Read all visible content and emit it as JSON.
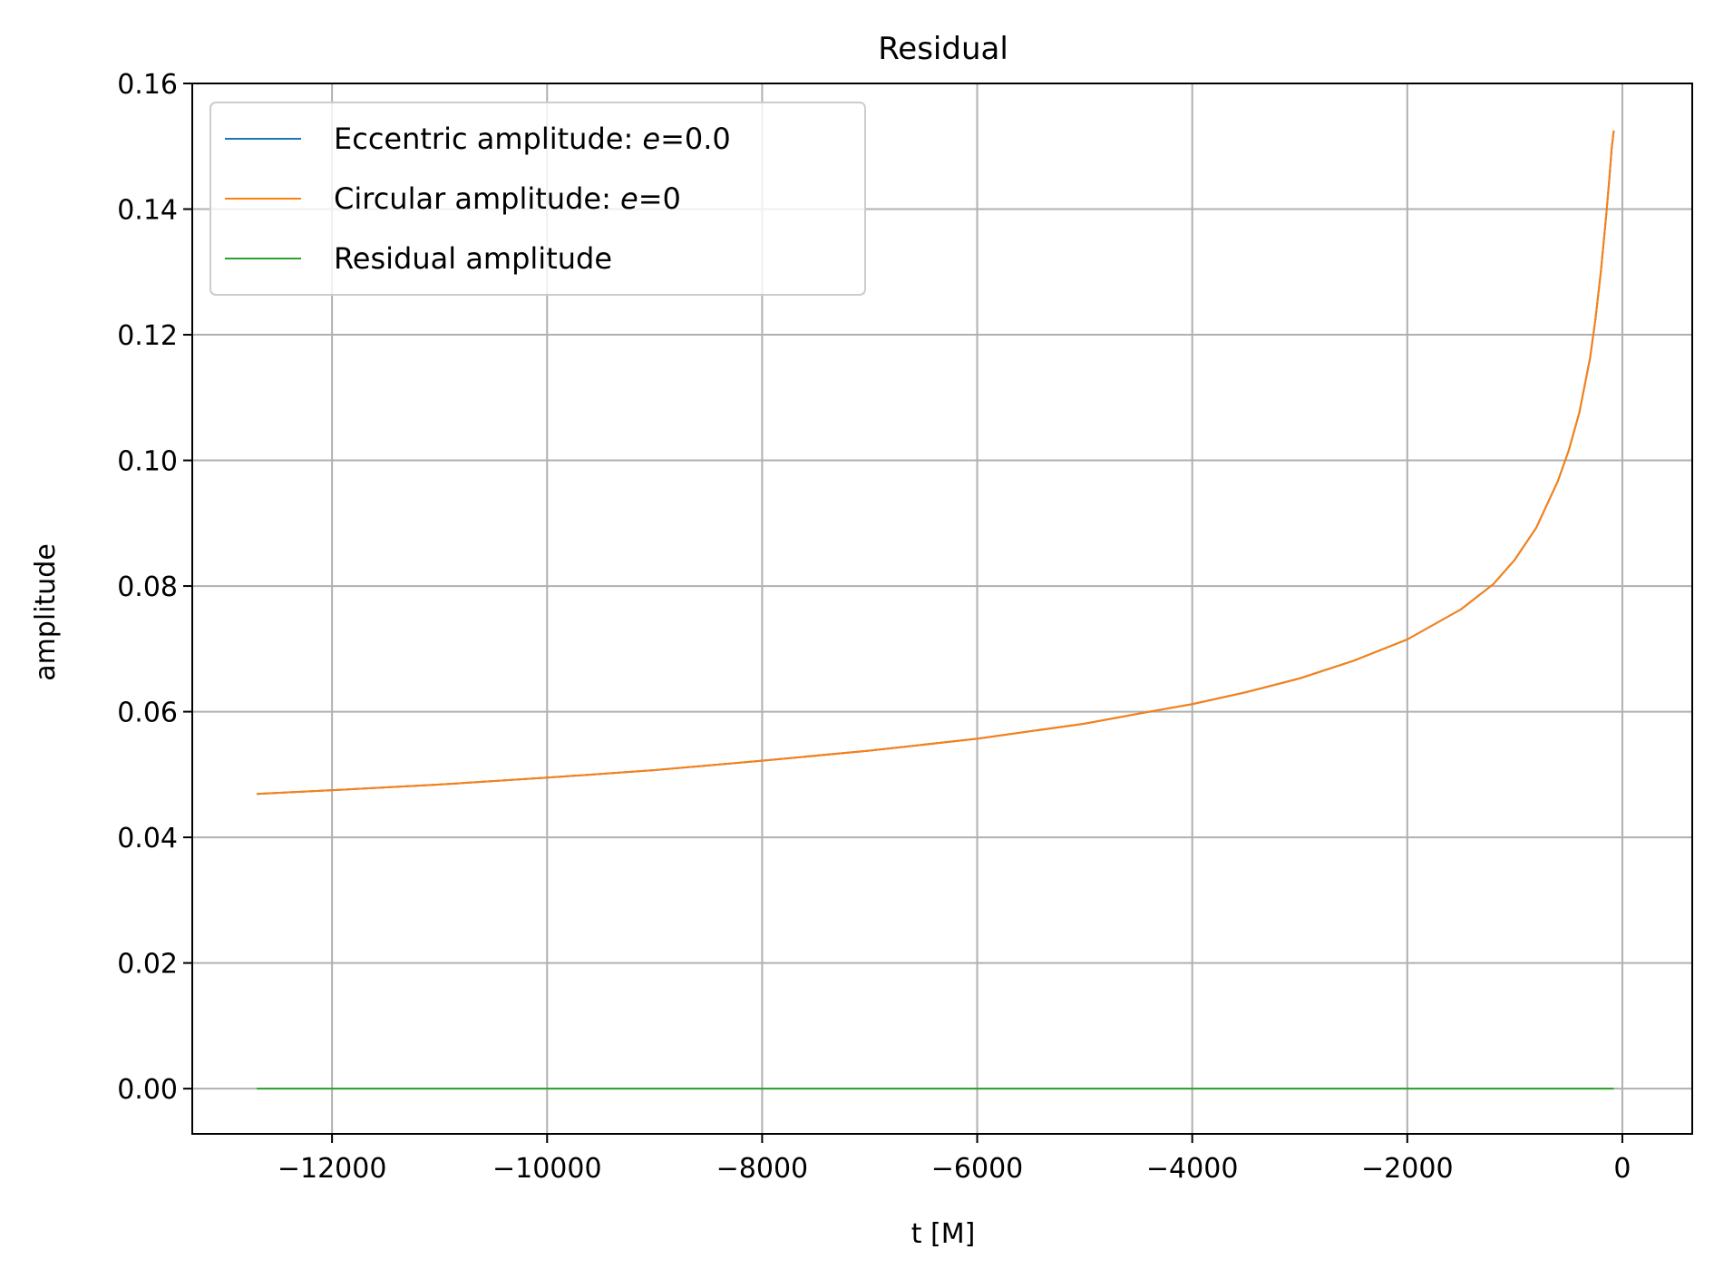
{
  "chart_data": {
    "type": "line",
    "title": "Residual",
    "xlabel": "t [M]",
    "ylabel": "amplitude",
    "xlim": [
      -13300,
      650
    ],
    "ylim": [
      -0.0072,
      0.16
    ],
    "xticks": [
      -12000,
      -10000,
      -8000,
      -6000,
      -4000,
      -2000,
      0
    ],
    "xtick_labels": [
      "−12000",
      "−10000",
      "−8000",
      "−6000",
      "−4000",
      "−2000",
      "0"
    ],
    "yticks": [
      0.0,
      0.02,
      0.04,
      0.06,
      0.08,
      0.1,
      0.12,
      0.14,
      0.16
    ],
    "ytick_labels": [
      "0.00",
      "0.02",
      "0.04",
      "0.06",
      "0.08",
      "0.10",
      "0.12",
      "0.14",
      "0.16"
    ],
    "grid": true,
    "legend_position": "upper-left",
    "x": [
      -12700,
      -12000,
      -11000,
      -10000,
      -9000,
      -8000,
      -7000,
      -6000,
      -5000,
      -4400,
      -4000,
      -3500,
      -3000,
      -2500,
      -2000,
      -1500,
      -1200,
      -1000,
      -800,
      -600,
      -500,
      -400,
      -300,
      -250,
      -200,
      -150,
      -120,
      -100,
      -80
    ],
    "series": [
      {
        "name": "Eccentric amplitude: e=0.0",
        "name_parts": {
          "prefix": "Eccentric amplitude: ",
          "italic": "e",
          "suffix": "=0.0"
        },
        "color": "#1f77b4",
        "values": [
          0.0469,
          0.0475,
          0.0484,
          0.0495,
          0.0507,
          0.0522,
          0.0538,
          0.0557,
          0.0581,
          0.06,
          0.0612,
          0.0631,
          0.0653,
          0.0681,
          0.0715,
          0.0763,
          0.0803,
          0.0842,
          0.0893,
          0.0967,
          0.1015,
          0.1076,
          0.1163,
          0.1225,
          0.13,
          0.139,
          0.145,
          0.1495,
          0.1525
        ]
      },
      {
        "name": "Circular amplitude: e=0",
        "name_parts": {
          "prefix": "Circular amplitude: ",
          "italic": "e",
          "suffix": "=0"
        },
        "color": "#ff7f0e",
        "values": [
          0.0469,
          0.0475,
          0.0484,
          0.0495,
          0.0507,
          0.0522,
          0.0538,
          0.0557,
          0.0581,
          0.06,
          0.0612,
          0.0631,
          0.0653,
          0.0681,
          0.0715,
          0.0763,
          0.0803,
          0.0842,
          0.0893,
          0.0967,
          0.1015,
          0.1076,
          0.1163,
          0.1225,
          0.13,
          0.139,
          0.145,
          0.1495,
          0.1525
        ]
      },
      {
        "name": "Residual amplitude",
        "name_parts": {
          "prefix": "Residual amplitude",
          "italic": "",
          "suffix": ""
        },
        "color": "#2ca02c",
        "values": [
          0,
          0,
          0,
          0,
          0,
          0,
          0,
          0,
          0,
          0,
          0,
          0,
          0,
          0,
          0,
          0,
          0,
          0,
          0,
          0,
          0,
          0,
          0,
          0,
          0,
          0,
          0,
          0,
          0
        ]
      }
    ]
  }
}
